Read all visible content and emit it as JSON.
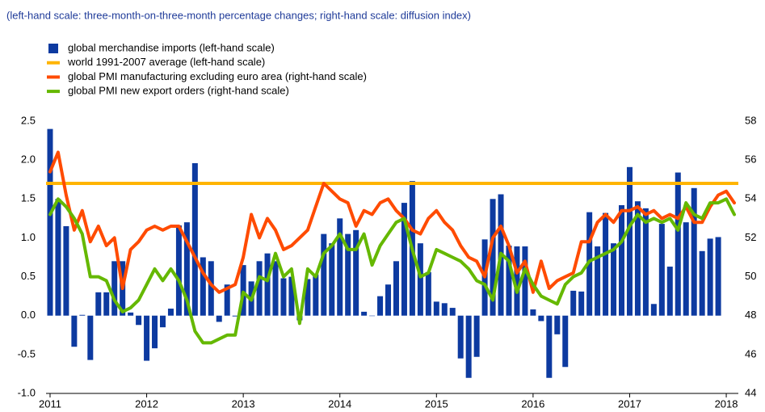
{
  "chart_data": {
    "type": "bar-line",
    "subtitle": "(left-hand scale: three-month-on-three-month percentage changes; right-hand scale: diffusion index)",
    "categories": [
      "2011",
      null,
      null,
      null,
      null,
      null,
      null,
      null,
      null,
      null,
      null,
      null,
      "2012",
      null,
      null,
      null,
      null,
      null,
      null,
      null,
      null,
      null,
      null,
      null,
      "2013",
      null,
      null,
      null,
      null,
      null,
      null,
      null,
      null,
      null,
      null,
      null,
      "2014",
      null,
      null,
      null,
      null,
      null,
      null,
      null,
      null,
      null,
      null,
      null,
      "2015",
      null,
      null,
      null,
      null,
      null,
      null,
      null,
      null,
      null,
      null,
      null,
      "2016",
      null,
      null,
      null,
      null,
      null,
      null,
      null,
      null,
      null,
      null,
      null,
      "2017",
      null,
      null,
      null,
      null,
      null,
      null,
      null,
      null,
      null,
      null,
      null,
      "2018",
      null
    ],
    "series": [
      {
        "name": "global merchandise imports (left-hand scale)",
        "kind": "bar",
        "color": "#0d3aa0",
        "axis": "y",
        "values": [
          2.4,
          1.5,
          1.15,
          -0.4,
          0.01,
          -0.57,
          0.3,
          0.3,
          0.7,
          0.7,
          0.04,
          -0.12,
          -0.58,
          -0.42,
          -0.15,
          0.09,
          1.16,
          1.2,
          1.96,
          0.75,
          0.7,
          -0.08,
          0.4,
          -0.01,
          0.65,
          0.44,
          0.7,
          0.8,
          0.7,
          0.48,
          0.5,
          -0.06,
          0.47,
          0.53,
          1.05,
          0.93,
          1.25,
          1.05,
          1.1,
          0.05,
          0.0,
          0.25,
          0.4,
          0.7,
          1.45,
          1.73,
          0.93,
          0.56,
          0.18,
          0.16,
          0.1,
          -0.55,
          -0.8,
          -0.53,
          0.98,
          1.5,
          1.56,
          0.9,
          0.89,
          0.89,
          0.08,
          -0.07,
          -0.8,
          -0.24,
          -0.66,
          0.32,
          0.31,
          1.33,
          0.89,
          1.32,
          0.93,
          1.42,
          1.91,
          1.47,
          1.38,
          0.15,
          1.18,
          0.63,
          1.84,
          1.2,
          1.64,
          0.83,
          0.99,
          1.01,
          null,
          null
        ]
      },
      {
        "name": "world 1991-2007 average (left-hand scale)",
        "kind": "hline",
        "color": "#ffb400",
        "axis": "y",
        "value": 1.7
      },
      {
        "name": "global PMI manufacturing excluding euro area (right-hand scale)",
        "kind": "line",
        "color": "#ff4b00",
        "axis": "y2",
        "values": [
          55.4,
          56.4,
          54.2,
          52.4,
          53.4,
          51.8,
          52.6,
          51.6,
          52.0,
          49.4,
          51.4,
          51.8,
          52.4,
          52.6,
          52.4,
          52.6,
          52.6,
          51.8,
          51.0,
          50.2,
          49.6,
          49.2,
          49.4,
          49.6,
          51.0,
          53.2,
          52.0,
          53.0,
          52.4,
          51.4,
          51.6,
          52.0,
          52.4,
          53.6,
          54.8,
          54.4,
          54.0,
          53.8,
          52.6,
          53.4,
          53.2,
          53.8,
          54.0,
          53.4,
          53.0,
          52.4,
          52.2,
          53.0,
          53.4,
          52.8,
          52.4,
          51.6,
          51.0,
          50.8,
          50.0,
          52.0,
          52.6,
          51.6,
          50.2,
          50.8,
          49.2,
          50.8,
          49.4,
          49.8,
          50.0,
          50.2,
          51.8,
          51.8,
          52.8,
          53.2,
          52.8,
          53.4,
          53.4,
          53.6,
          53.2,
          53.4,
          53.0,
          53.2,
          53.0,
          53.6,
          52.8,
          52.8,
          53.6,
          54.2,
          54.4,
          53.8
        ]
      },
      {
        "name": "global PMI new export orders (right-hand scale)",
        "kind": "line",
        "color": "#65b800",
        "axis": "y2",
        "values": [
          53.2,
          54.0,
          53.6,
          53.0,
          52.2,
          50.0,
          50.0,
          49.8,
          48.8,
          48.2,
          48.4,
          48.8,
          49.6,
          50.4,
          49.8,
          50.4,
          49.8,
          48.8,
          47.2,
          46.6,
          46.6,
          46.8,
          47.0,
          47.0,
          49.2,
          48.8,
          50.0,
          49.8,
          51.2,
          50.0,
          50.4,
          47.6,
          50.4,
          50.0,
          51.2,
          51.6,
          52.2,
          51.4,
          51.4,
          52.2,
          50.6,
          51.6,
          52.2,
          52.8,
          53.0,
          51.4,
          50.0,
          50.2,
          51.4,
          51.2,
          51.0,
          50.8,
          50.4,
          49.8,
          49.6,
          48.8,
          51.2,
          50.8,
          49.2,
          50.4,
          49.6,
          49.0,
          48.8,
          48.6,
          49.6,
          50.0,
          50.2,
          50.8,
          51.0,
          51.2,
          51.4,
          51.8,
          52.6,
          53.2,
          52.8,
          53.0,
          52.8,
          53.0,
          52.4,
          53.8,
          53.2,
          53.0,
          53.8,
          53.8,
          54.0,
          53.2
        ]
      }
    ],
    "ylim": [
      -1.0,
      2.5
    ],
    "yticks": [
      {
        "value": -1.0,
        "label": "-1.0"
      },
      {
        "value": -0.5,
        "label": "-0.5"
      },
      {
        "value": 0.0,
        "label": "0.0"
      },
      {
        "value": 0.5,
        "label": "0.5"
      },
      {
        "value": 1.0,
        "label": "1.0"
      },
      {
        "value": 1.5,
        "label": "1.5"
      },
      {
        "value": 2.0,
        "label": "2.0"
      },
      {
        "value": 2.5,
        "label": "2.5"
      }
    ],
    "y2lim": [
      44,
      58
    ],
    "y2ticks": [
      44,
      46,
      48,
      50,
      52,
      54,
      56,
      58
    ],
    "grid": false,
    "legend": "top-left"
  }
}
